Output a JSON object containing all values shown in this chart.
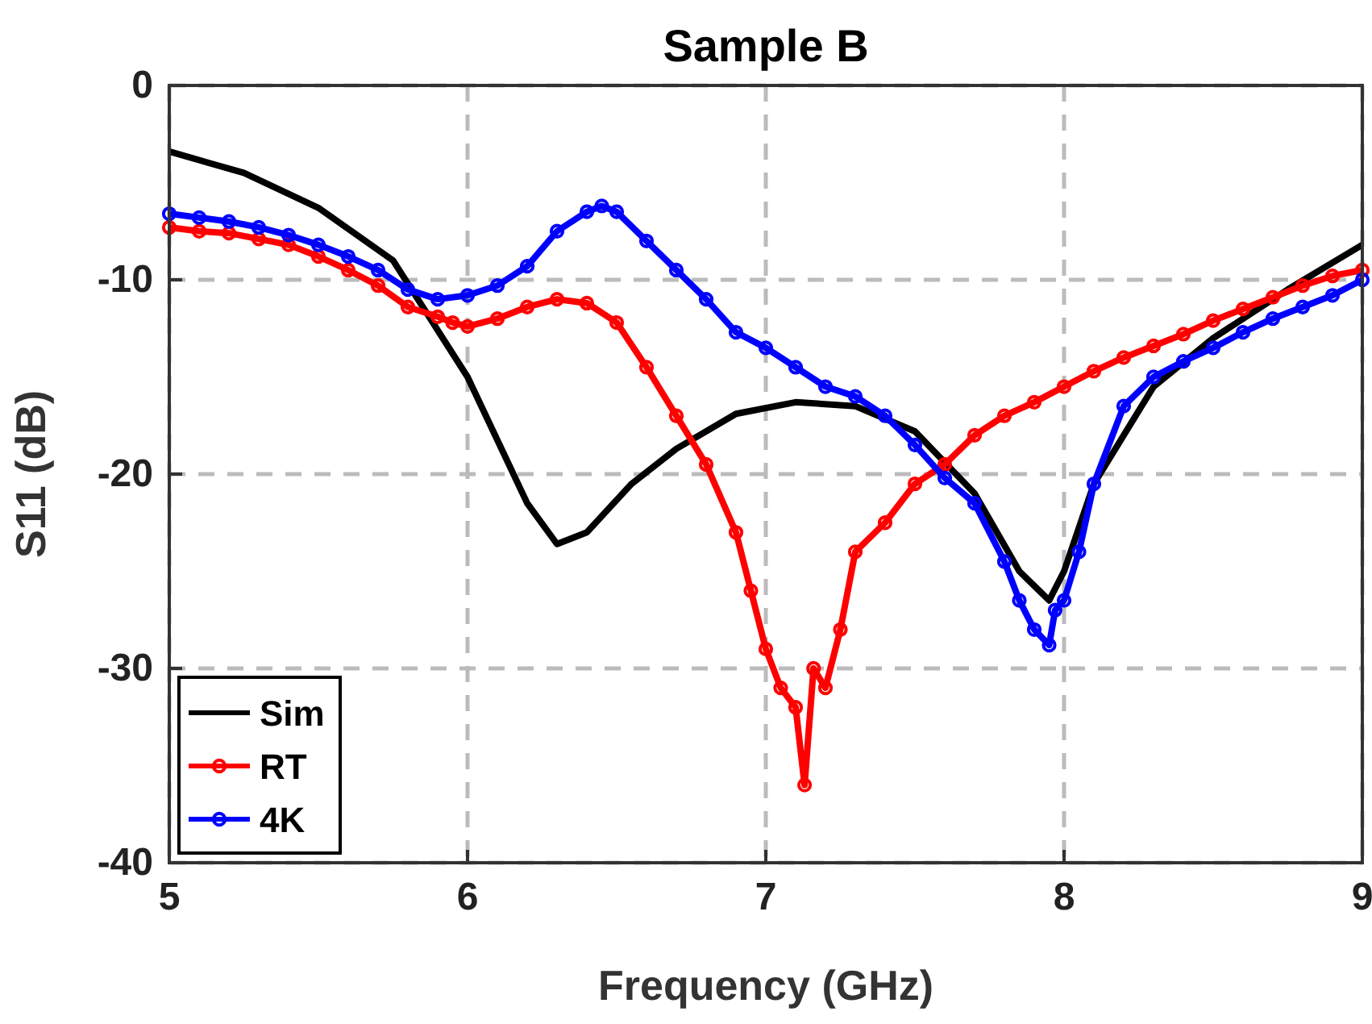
{
  "chart_data": {
    "type": "line",
    "title": "Sample B",
    "xlabel": "Frequency (GHz)",
    "ylabel": "S11 (dB)",
    "xlim": [
      5,
      9
    ],
    "xticks": [
      5,
      6,
      7,
      8,
      9
    ],
    "ylim": [
      -40,
      0
    ],
    "yticks": [
      -40,
      -30,
      -20,
      -10,
      0
    ],
    "grid": true,
    "legend": "bottom left",
    "series": [
      {
        "name": "Sim",
        "color": "#000000",
        "marker": "none",
        "x": [
          5,
          5.25,
          5.5,
          5.75,
          6.0,
          6.2,
          6.3,
          6.4,
          6.55,
          6.7,
          6.9,
          7.1,
          7.3,
          7.5,
          7.7,
          7.85,
          7.95,
          8.0,
          8.1,
          8.3,
          8.5,
          8.75,
          9
        ],
        "values": [
          -3.4,
          -4.5,
          -6.3,
          -9,
          -15,
          -21.5,
          -23.6,
          -23,
          -20.5,
          -18.7,
          -16.9,
          -16.3,
          -16.5,
          -17.8,
          -21,
          -25,
          -26.5,
          -25,
          -20.5,
          -15.5,
          -13,
          -10.5,
          -8.2
        ]
      },
      {
        "name": "RT",
        "color": "#ff0000",
        "marker": "circle",
        "x": [
          5,
          5.1,
          5.2,
          5.3,
          5.4,
          5.5,
          5.6,
          5.7,
          5.8,
          5.9,
          5.95,
          6.0,
          6.1,
          6.2,
          6.3,
          6.4,
          6.5,
          6.6,
          6.7,
          6.8,
          6.9,
          6.95,
          7.0,
          7.05,
          7.1,
          7.13,
          7.16,
          7.2,
          7.25,
          7.3,
          7.4,
          7.5,
          7.6,
          7.7,
          7.8,
          7.9,
          8.0,
          8.1,
          8.2,
          8.3,
          8.4,
          8.5,
          8.6,
          8.7,
          8.8,
          8.9,
          9
        ],
        "values": [
          -7.3,
          -7.5,
          -7.6,
          -7.9,
          -8.2,
          -8.8,
          -9.5,
          -10.3,
          -11.4,
          -11.9,
          -12.2,
          -12.4,
          -12,
          -11.4,
          -11,
          -11.2,
          -12.2,
          -14.5,
          -17,
          -19.5,
          -23,
          -26,
          -29,
          -31,
          -32,
          -36,
          -30,
          -31,
          -28,
          -24,
          -22.5,
          -20.5,
          -19.5,
          -18,
          -17,
          -16.3,
          -15.5,
          -14.7,
          -14,
          -13.4,
          -12.8,
          -12.1,
          -11.5,
          -10.9,
          -10.3,
          -9.8,
          -9.5
        ]
      },
      {
        "name": "4K",
        "color": "#0000ff",
        "marker": "circle",
        "x": [
          5,
          5.1,
          5.2,
          5.3,
          5.4,
          5.5,
          5.6,
          5.7,
          5.8,
          5.9,
          6.0,
          6.1,
          6.2,
          6.3,
          6.4,
          6.45,
          6.5,
          6.6,
          6.7,
          6.8,
          6.9,
          7.0,
          7.1,
          7.2,
          7.3,
          7.4,
          7.5,
          7.6,
          7.7,
          7.8,
          7.85,
          7.9,
          7.95,
          7.97,
          8.0,
          8.05,
          8.1,
          8.2,
          8.3,
          8.4,
          8.5,
          8.6,
          8.7,
          8.8,
          8.9,
          9
        ],
        "values": [
          -6.6,
          -6.8,
          -7.0,
          -7.3,
          -7.7,
          -8.2,
          -8.8,
          -9.5,
          -10.5,
          -11.0,
          -10.8,
          -10.3,
          -9.3,
          -7.5,
          -6.5,
          -6.2,
          -6.5,
          -8,
          -9.5,
          -11,
          -12.7,
          -13.5,
          -14.5,
          -15.5,
          -16,
          -17,
          -18.5,
          -20.2,
          -21.5,
          -24.5,
          -26.5,
          -28,
          -28.8,
          -27,
          -26.5,
          -24,
          -20.5,
          -16.5,
          -15,
          -14.2,
          -13.5,
          -12.7,
          -12,
          -11.4,
          -10.8,
          -10
        ]
      }
    ]
  }
}
